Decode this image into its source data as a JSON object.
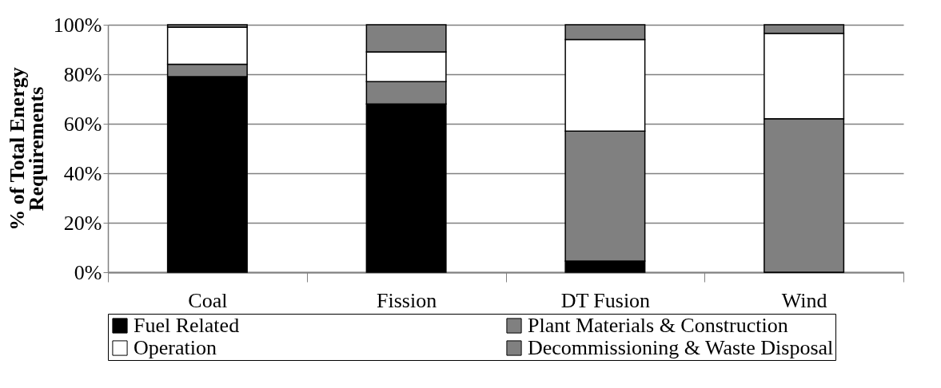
{
  "chart_data": {
    "type": "bar",
    "stacked": true,
    "ylabel": "% of Total Energy Requirements",
    "categories": [
      "Coal",
      "Fission",
      "DT Fusion",
      "Wind"
    ],
    "series": [
      {
        "name": "Fuel Related",
        "color": "#000000",
        "values": [
          79,
          68,
          4.5,
          0
        ]
      },
      {
        "name": "Plant Materials & Construction",
        "color": "#808080",
        "values": [
          5,
          9,
          52.5,
          62
        ]
      },
      {
        "name": "Operation",
        "color": "#ffffff",
        "values": [
          15,
          12,
          37,
          34.5
        ]
      },
      {
        "name": "Decommissioning & Waste Disposal",
        "color": "#808080",
        "values": [
          1,
          11,
          6,
          3.5
        ]
      }
    ],
    "ylim": [
      0,
      100
    ],
    "yticks": [
      {
        "value": 0,
        "label": "0%"
      },
      {
        "value": 20,
        "label": "20%"
      },
      {
        "value": 40,
        "label": "40%"
      },
      {
        "value": 60,
        "label": "60%"
      },
      {
        "value": 80,
        "label": "80%"
      },
      {
        "value": 100,
        "label": "100%"
      }
    ],
    "grid": "y",
    "legend": "bottom"
  }
}
